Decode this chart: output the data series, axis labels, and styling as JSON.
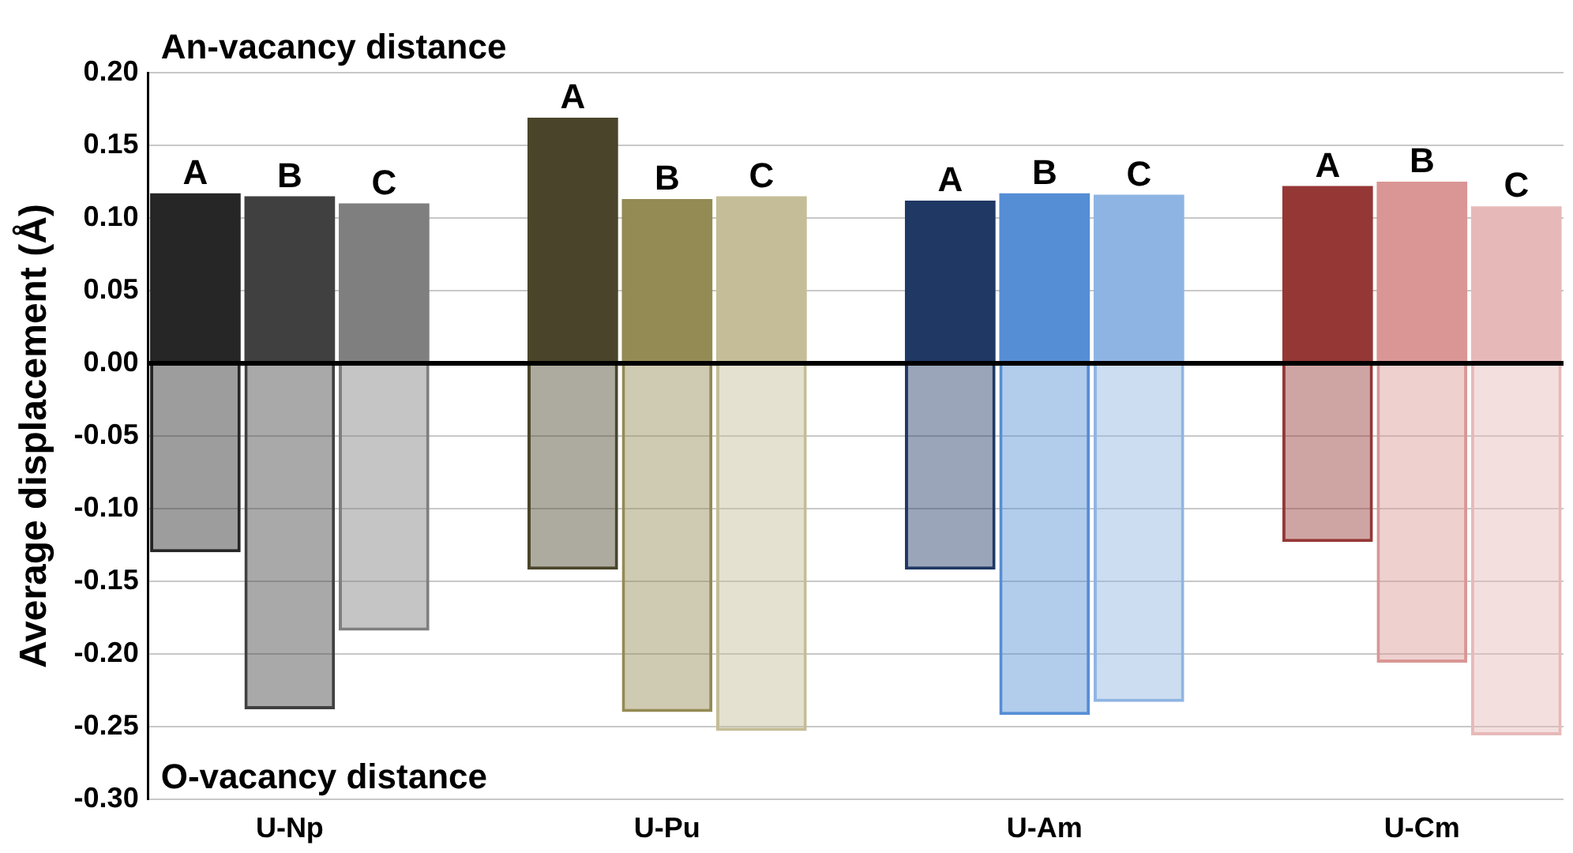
{
  "chart_data": {
    "type": "bar",
    "ylabel": "Average displacement (Å)",
    "categories": [
      "A",
      "B",
      "C",
      null,
      "A",
      "B",
      "C",
      null,
      "A",
      "B",
      "C",
      null,
      "A",
      "B",
      "C"
    ],
    "stacked": true,
    "ylim": [
      -0.3,
      0.2
    ],
    "yticks": [
      {
        "value": -0.3,
        "label": "-0.30"
      },
      {
        "value": -0.25,
        "label": "-0.25"
      },
      {
        "value": -0.2,
        "label": "-0.20"
      },
      {
        "value": -0.15,
        "label": "-0.15"
      },
      {
        "value": -0.1,
        "label": "-0.10"
      },
      {
        "value": -0.05,
        "label": "-0.05"
      },
      {
        "value": 0,
        "label": "0.00"
      },
      {
        "value": 0.05,
        "label": "0.05"
      },
      {
        "value": 0.1,
        "label": "0.10"
      },
      {
        "value": 0.15,
        "label": "0.15"
      },
      {
        "value": 0.2,
        "label": "0.20"
      }
    ],
    "grid": "y",
    "legend": false,
    "annotations": [
      "An-vacancy distance",
      "O-vacancy distance",
      "U-Np",
      "U-Pu",
      "U-Am",
      "U-Cm"
    ],
    "series": [
      {
        "colors": [
          "#262626",
          "#404040",
          "#7f7f7f",
          null,
          "#4a452a",
          "#948a54",
          "#c4bd97",
          null,
          "#1f3864",
          "#558ed5",
          "#8eb4e3",
          null,
          "#953735",
          "#d99694",
          "#e6b9b8"
        ],
        "values": [
          0.117,
          0.115,
          0.11,
          null,
          0.169,
          0.113,
          0.115,
          null,
          0.112,
          0.117,
          0.116,
          null,
          0.122,
          0.125,
          0.108
        ]
      },
      {
        "colors": [
          "#262626",
          "#404040",
          "#7f7f7f",
          null,
          "#4a452a",
          "#948a54",
          "#c4bd97",
          null,
          "#1f3864",
          "#558ed5",
          "#8eb4e3",
          null,
          "#953735",
          "#d99694",
          "#e6b9b8"
        ],
        "values": [
          -0.13,
          -0.238,
          -0.184,
          null,
          -0.142,
          -0.24,
          -0.253,
          null,
          -0.142,
          -0.242,
          -0.233,
          null,
          -0.123,
          -0.206,
          -0.256
        ]
      }
    ]
  }
}
